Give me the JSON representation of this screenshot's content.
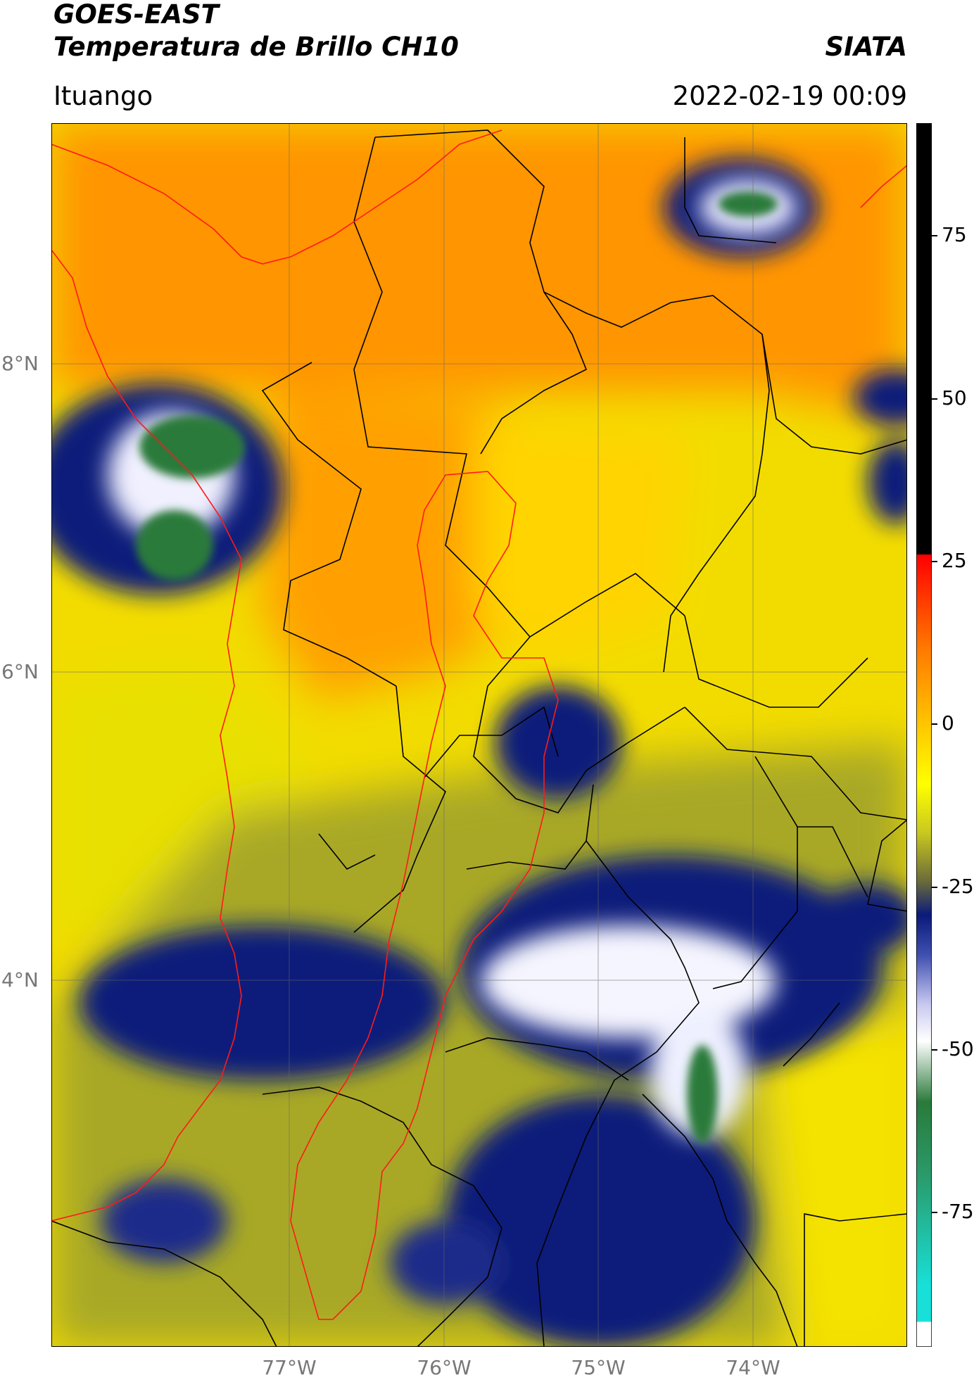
{
  "header": {
    "satellite": "GOES-EAST",
    "product": "Temperatura de Brillo CH10",
    "org": "SIATA",
    "location": "Ituango",
    "datetime": "2022-02-19 00:09"
  },
  "map": {
    "lat_labels": [
      "8°N",
      "6°N",
      "4°N"
    ],
    "lon_labels": [
      "77°W",
      "76°W",
      "75°W",
      "74°W"
    ]
  },
  "colorbar": {
    "ticks": [
      "75",
      "50",
      "25",
      "0",
      "-25",
      "-50",
      "-75"
    ],
    "colors": {
      "black": "#000000",
      "red": "#ff0000",
      "orange": "#ff8c00",
      "yellow": "#ffff00",
      "olive": "#9c9c2a",
      "navy": "#0a1a7a",
      "white": "#f5f5ff",
      "green": "#2a7a3a",
      "cyan": "#18e0d8"
    }
  }
}
